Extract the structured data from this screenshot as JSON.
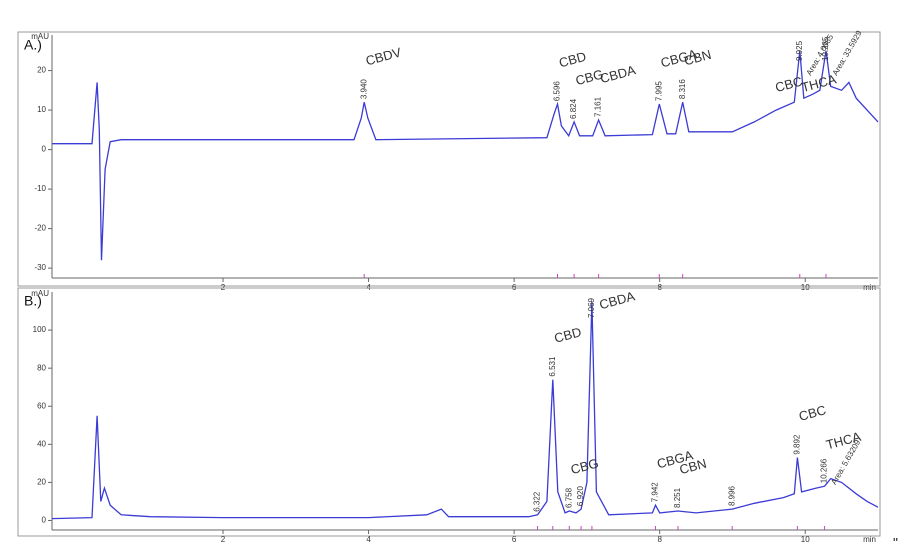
{
  "chart_data": [
    {
      "type": "line",
      "panel_label": "A.)",
      "y_label": "mAU",
      "x_label": "min",
      "color": "#3b3bd6",
      "xlim": [
        -0.35,
        11
      ],
      "ylim": [
        -32.5,
        29
      ],
      "xticks": [
        2,
        4,
        6,
        8,
        10
      ],
      "yticks": [
        -30,
        -20,
        -10,
        0,
        10,
        20
      ],
      "x": [
        -0.35,
        0.2,
        0.27,
        0.3,
        0.33,
        0.38,
        0.45,
        0.6,
        3.8,
        3.9,
        3.94,
        3.99,
        4.1,
        6.45,
        6.55,
        6.596,
        6.65,
        6.75,
        6.824,
        6.9,
        7.08,
        7.161,
        7.25,
        7.9,
        7.995,
        8.1,
        8.22,
        8.316,
        8.4,
        9.0,
        9.3,
        9.6,
        9.85,
        9.925,
        9.98,
        10.1,
        10.2,
        10.285,
        10.35,
        10.5,
        10.6,
        10.7,
        11
      ],
      "values": [
        1.5,
        1.5,
        17,
        5,
        -28,
        -5,
        2,
        2.5,
        2.5,
        8,
        12,
        8,
        2.5,
        3,
        9,
        11.5,
        6,
        3.5,
        7,
        3.5,
        3.5,
        7.5,
        3.5,
        3.8,
        11.5,
        4,
        4,
        12,
        4.5,
        4.5,
        7,
        10,
        12,
        25,
        13,
        14,
        15,
        25,
        16,
        15,
        17,
        13,
        7
      ],
      "peaks": [
        {
          "rt": {
            "value": 3.94,
            "label": "3.940"
          },
          "name": "CBDV"
        },
        {
          "rt": {
            "value": 6.596,
            "label": "6.596"
          },
          "name": "CBD"
        },
        {
          "rt": {
            "value": 6.824,
            "label": "6.824"
          },
          "name": "CBG"
        },
        {
          "rt": {
            "value": 7.161,
            "label": "7.161"
          },
          "name": "CBDA"
        },
        {
          "rt": {
            "value": 7.995,
            "label": "7.995"
          },
          "name": "CBGA"
        },
        {
          "rt": {
            "value": 8.316,
            "label": "8.316"
          },
          "name": "CBN"
        },
        {
          "rt": {
            "value": 9.925,
            "label": "9.925"
          },
          "area": "Area: 4.0085",
          "name_below": "CBC"
        },
        {
          "rt": {
            "value": 10.285,
            "label": "10.285"
          },
          "area": "Area: 33.5929",
          "name_below": "THCA"
        }
      ]
    },
    {
      "type": "line",
      "panel_label": "B.)",
      "y_label": "mAU",
      "x_label": "min",
      "color": "#3b3bd6",
      "xlim": [
        -0.35,
        11
      ],
      "ylim": [
        -5,
        120
      ],
      "xticks": [
        2,
        4,
        6,
        8,
        10
      ],
      "yticks": [
        0,
        20,
        40,
        60,
        80,
        100
      ],
      "x": [
        -0.35,
        0.2,
        0.27,
        0.32,
        0.37,
        0.45,
        0.6,
        1,
        2,
        4,
        4.8,
        5.0,
        5.1,
        6.2,
        6.322,
        6.45,
        6.531,
        6.6,
        6.7,
        6.758,
        6.85,
        6.92,
        7.0,
        7.069,
        7.13,
        7.3,
        7.9,
        7.942,
        8.0,
        8.251,
        8.5,
        8.996,
        9.3,
        9.7,
        9.85,
        9.892,
        9.95,
        10.15,
        10.266,
        10.35,
        10.5,
        10.7,
        10.85,
        11
      ],
      "values": [
        1,
        1.5,
        55,
        10,
        17,
        8,
        3,
        2,
        1.5,
        1.5,
        3,
        6,
        2,
        2,
        3,
        10,
        74,
        15,
        4,
        5,
        4,
        6,
        20,
        115,
        15,
        3,
        4,
        8,
        4,
        5,
        4,
        6,
        9,
        12,
        14,
        33,
        15,
        17,
        18,
        22,
        20,
        14,
        10,
        7
      ],
      "peaks": [
        {
          "rt": {
            "value": 6.322,
            "label": "6.322"
          }
        },
        {
          "rt": {
            "value": 6.531,
            "label": "6.531"
          },
          "name": "CBD"
        },
        {
          "rt": {
            "value": 6.758,
            "label": "6.758"
          },
          "name": "CBG"
        },
        {
          "rt": {
            "value": 6.92,
            "label": "6.920"
          }
        },
        {
          "rt": {
            "value": 7.069,
            "label": "7.069"
          },
          "name": "CBDA"
        },
        {
          "rt": {
            "value": 7.942,
            "label": "7.942"
          },
          "name": "CBGA"
        },
        {
          "rt": {
            "value": 8.251,
            "label": "8.251"
          },
          "name": "CBN"
        },
        {
          "rt": {
            "value": 8.996,
            "label": "8.996"
          }
        },
        {
          "rt": {
            "value": 9.892,
            "label": "9.892"
          },
          "name": "CBC"
        },
        {
          "rt": {
            "value": 10.266,
            "label": "10.266"
          },
          "area": "Area: 5.63209",
          "name": "THCA"
        }
      ]
    }
  ],
  "footnote": "\""
}
